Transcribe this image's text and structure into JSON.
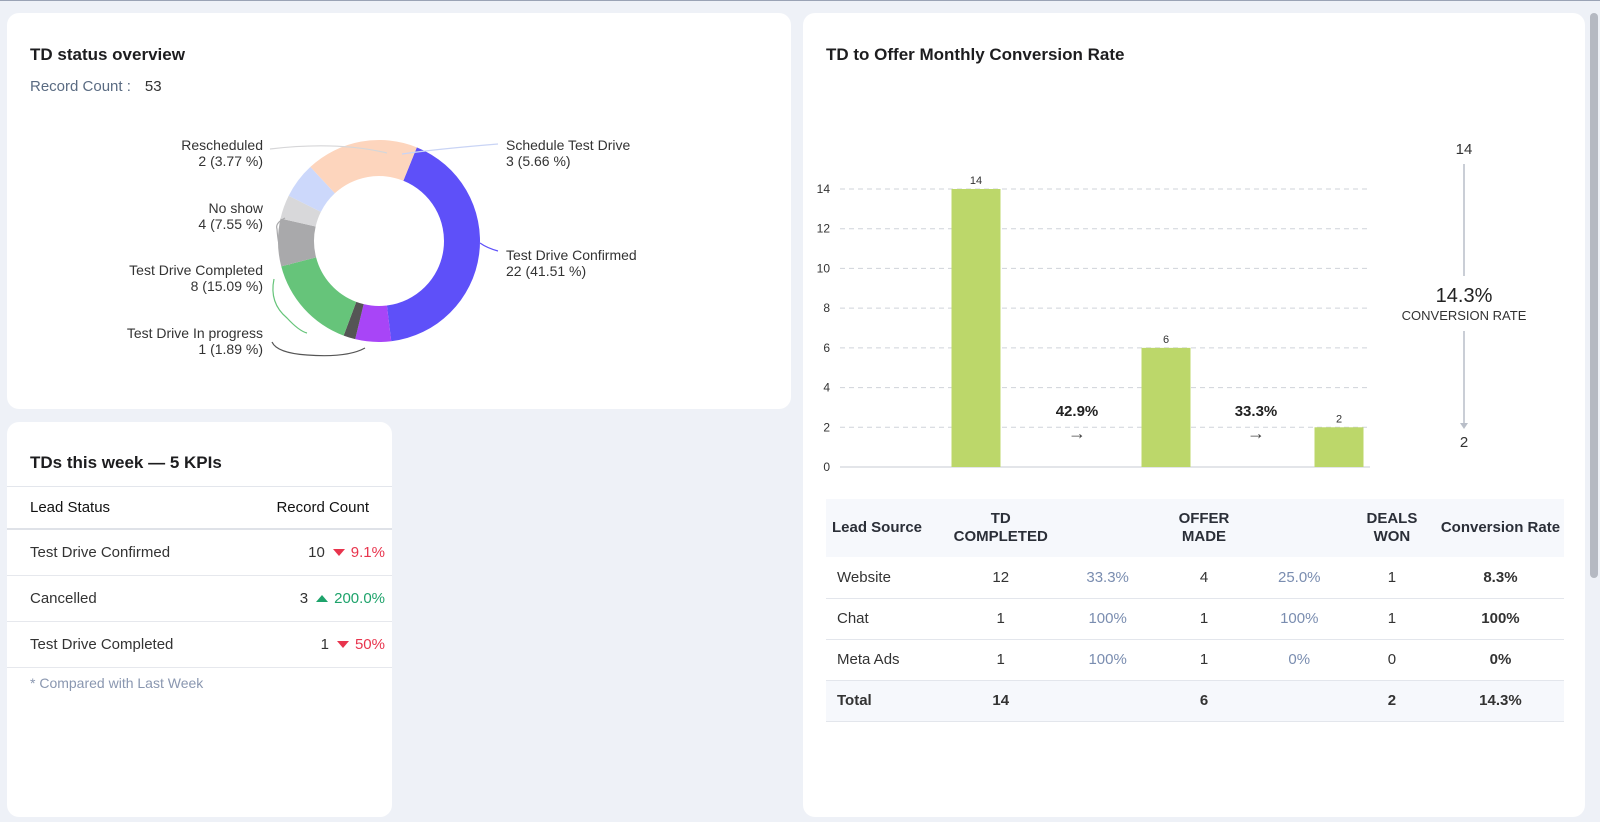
{
  "donut_card": {
    "title": "TD status overview",
    "record_count_label": "Record Count :",
    "record_count_value": "53",
    "chart_data": {
      "type": "pie",
      "slices": [
        {
          "name": "Test Drive Confirmed",
          "value": 22,
          "pct": "41.51 %",
          "color": "#5e50f9"
        },
        {
          "name": "Cancelled",
          "value": 3,
          "pct": "5.66 %",
          "color": "#a845f7"
        },
        {
          "name": "Test Drive In progress",
          "value": 1,
          "pct": "1.89 %",
          "color": "#555555"
        },
        {
          "name": "Test Drive Completed",
          "value": 8,
          "pct": "15.09 %",
          "color": "#66c47a"
        },
        {
          "name": "No show",
          "value": 4,
          "pct": "7.55 %",
          "color": "#a9a9ab"
        },
        {
          "name": "Rescheduled",
          "value": 2,
          "pct": "3.77 %",
          "color": "#d8d8da"
        },
        {
          "name": "Schedule Test Drive",
          "value": 3,
          "pct": "5.66 %",
          "color": "#ccd8fb"
        }
      ],
      "labels": [
        {
          "name": "Schedule Test Drive",
          "detail": "3 (5.66 %)"
        },
        {
          "name": "Test Drive Confirmed",
          "detail": "22 (41.51 %)"
        },
        {
          "name": "Rescheduled",
          "detail": "2 (3.77 %)"
        },
        {
          "name": "No show",
          "detail": "4 (7.55 %)"
        },
        {
          "name": "Test Drive Completed",
          "detail": "8 (15.09 %)"
        },
        {
          "name": "Test Drive In progress",
          "detail": "1 (1.89 %)"
        }
      ],
      "extra_slice_color": "#fdd5bd"
    }
  },
  "kpi_card": {
    "title": "TDs this week — 5 KPIs",
    "col_status": "Lead Status",
    "col_count": "Record Count",
    "rows": [
      {
        "status": "Test Drive Confirmed",
        "count": "10",
        "change": "9.1%",
        "dir": "down"
      },
      {
        "status": "Cancelled",
        "count": "3",
        "change": "200.0%",
        "dir": "up"
      },
      {
        "status": "Test Drive Completed",
        "count": "1",
        "change": "50%",
        "dir": "down"
      }
    ],
    "footnote": "* Compared with Last Week"
  },
  "funnel_card": {
    "title": "TD to Offer Monthly Conversion Rate",
    "chart_data": {
      "type": "bar",
      "categories": [
        "TD COMPLETED",
        "OFFER MADE",
        "DEALS WON"
      ],
      "values": [
        14,
        6,
        2
      ],
      "ylim": [
        0,
        14
      ],
      "yticks": [
        "0",
        "2",
        "4",
        "6",
        "8",
        "10",
        "12",
        "14"
      ],
      "value_labels": [
        "14",
        "6",
        "2"
      ],
      "step_rates": [
        "42.9%",
        "33.3%"
      ],
      "bar_color": "#bcd76a",
      "grid": true
    },
    "overall": {
      "top": "14",
      "rate": "14.3%",
      "rate_label": "CONVERSION RATE",
      "bottom": "2"
    },
    "table": {
      "headers": [
        "Lead Source",
        "TD COMPLETED",
        "",
        "OFFER MADE",
        "",
        "DEALS WON",
        "Conversion Rate"
      ],
      "rows": [
        {
          "source": "Website",
          "td": "12",
          "p1": "33.3%",
          "offer": "4",
          "p2": "25.0%",
          "won": "1",
          "rate": "8.3%"
        },
        {
          "source": "Chat",
          "td": "1",
          "p1": "100%",
          "offer": "1",
          "p2": "100%",
          "won": "1",
          "rate": "100%"
        },
        {
          "source": "Meta Ads",
          "td": "1",
          "p1": "100%",
          "offer": "1",
          "p2": "0%",
          "won": "0",
          "rate": "0%"
        }
      ],
      "total": {
        "source": "Total",
        "td": "14",
        "offer": "6",
        "won": "2",
        "rate": "14.3%"
      }
    }
  }
}
